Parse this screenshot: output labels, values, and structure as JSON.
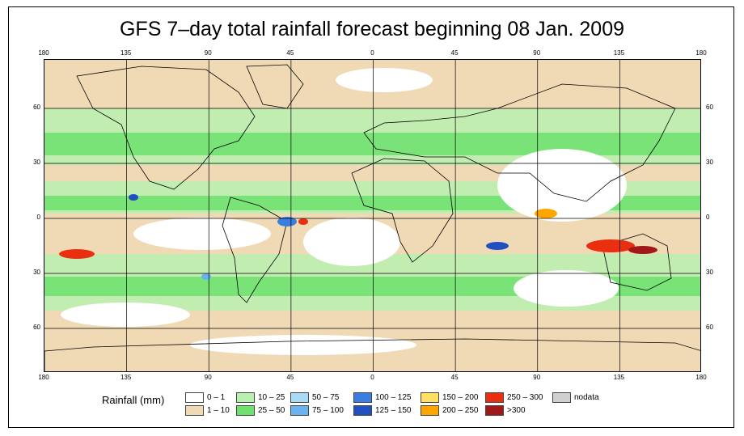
{
  "title": "GFS 7–day total rainfall forecast beginning 08 Jan. 2009",
  "map": {
    "longitude_ticks": [
      "180",
      "135",
      "90",
      "45",
      "0",
      "45",
      "90",
      "135",
      "180"
    ],
    "latitude_ticks": [
      "60",
      "30",
      "0",
      "30",
      "60"
    ]
  },
  "legend": {
    "label": "Rainfall (mm)",
    "items": [
      {
        "label": "0 – 1",
        "color": "#ffffff"
      },
      {
        "label": "1 – 10",
        "color": "#f0d9b5"
      },
      {
        "label": "10 – 25",
        "color": "#b8f0b0"
      },
      {
        "label": "25 – 50",
        "color": "#6de06d"
      },
      {
        "label": "50 – 75",
        "color": "#a8dcf5"
      },
      {
        "label": "75 – 100",
        "color": "#6ab3f0"
      },
      {
        "label": "100 – 125",
        "color": "#3a7fe0"
      },
      {
        "label": "125 – 150",
        "color": "#1f4fc0"
      },
      {
        "label": "150 – 200",
        "color": "#ffe060"
      },
      {
        "label": "200 – 250",
        "color": "#ffa500"
      },
      {
        "label": "250 – 300",
        "color": "#e83010"
      },
      {
        "label": ">300",
        "color": "#a01818"
      },
      {
        "label": "nodata",
        "color": "#d0d0d0"
      }
    ]
  }
}
